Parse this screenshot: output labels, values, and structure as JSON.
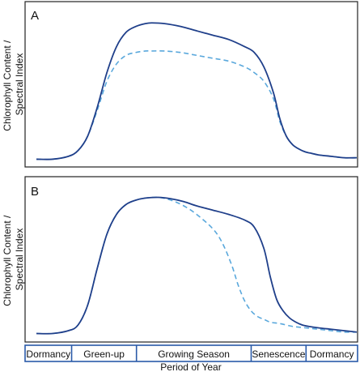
{
  "chart_data": [
    {
      "type": "line",
      "panel_label": "A",
      "ylabel": "Chlorophyll Content / Spectral Index",
      "xlim": [
        0,
        100
      ],
      "ylim": [
        0,
        100
      ],
      "grid": false,
      "series": [
        {
          "style": "solid",
          "color": "#1f3f8a",
          "x": [
            0,
            5,
            10,
            13,
            16,
            19,
            22,
            25,
            28,
            31,
            34,
            36,
            40,
            45,
            50,
            55,
            60,
            65,
            68,
            71,
            74,
            76,
            78,
            80,
            82,
            84,
            86,
            88,
            92,
            96,
            100
          ],
          "y": [
            2,
            2,
            4,
            8,
            18,
            38,
            62,
            80,
            90,
            94,
            96,
            96.5,
            96,
            94,
            91,
            88,
            85,
            80,
            76,
            66,
            48,
            30,
            18,
            12,
            9,
            7,
            6,
            5,
            4,
            3,
            3
          ]
        },
        {
          "style": "dashed",
          "color": "#5aa8dc",
          "x": [
            0,
            5,
            10,
            13,
            16,
            19,
            22,
            25,
            28,
            31,
            34,
            36,
            40,
            45,
            50,
            55,
            60,
            65,
            68,
            71,
            74,
            76,
            78,
            80,
            82,
            84,
            86,
            88,
            92,
            96,
            100
          ],
          "y": [
            2,
            2,
            4,
            8,
            18,
            36,
            56,
            68,
            74,
            76,
            77,
            77,
            77,
            76,
            74,
            72,
            70,
            66,
            62,
            56,
            44,
            28,
            18,
            12,
            9,
            7,
            6,
            5,
            4,
            3,
            3
          ]
        }
      ]
    },
    {
      "type": "line",
      "panel_label": "B",
      "ylabel": "Chlorophyll Content / Spectral Index",
      "xlim": [
        0,
        100
      ],
      "ylim": [
        0,
        100
      ],
      "grid": false,
      "series": [
        {
          "style": "solid",
          "color": "#1f3f8a",
          "x": [
            0,
            5,
            10,
            13,
            16,
            19,
            22,
            25,
            28,
            31,
            34,
            38,
            42,
            46,
            50,
            55,
            60,
            65,
            68,
            71,
            73,
            75,
            77,
            79,
            81,
            83,
            85,
            88,
            92,
            96,
            100
          ],
          "y": [
            2,
            2,
            4,
            8,
            22,
            48,
            72,
            86,
            93,
            96,
            97.5,
            98,
            97,
            95,
            92,
            89,
            86,
            82,
            77,
            62,
            42,
            26,
            18,
            13,
            10,
            8,
            7,
            6,
            5,
            4,
            3
          ]
        },
        {
          "style": "dashed",
          "color": "#5aa8dc",
          "x": [
            0,
            5,
            10,
            13,
            16,
            19,
            22,
            25,
            28,
            31,
            34,
            38,
            42,
            46,
            50,
            55,
            58,
            61,
            63,
            65,
            67,
            69,
            71,
            73,
            76,
            80,
            84,
            88,
            92,
            96,
            100
          ],
          "y": [
            2,
            2,
            4,
            8,
            22,
            48,
            72,
            86,
            93,
            96,
            97.5,
            98,
            96,
            92,
            86,
            76,
            66,
            50,
            36,
            25,
            18,
            14,
            12,
            10,
            9,
            7,
            6,
            5,
            4,
            3,
            3
          ]
        }
      ]
    }
  ],
  "periods": {
    "xlabel": "Period of Year",
    "items": [
      {
        "label": "Dormancy",
        "start": 0,
        "end": 14
      },
      {
        "label": "Green-up",
        "start": 14,
        "end": 33.5
      },
      {
        "label": "Growing Season",
        "start": 33.5,
        "end": 68
      },
      {
        "label": "Senescence",
        "start": 68,
        "end": 84.5
      },
      {
        "label": "Dormancy",
        "start": 84.5,
        "end": 100
      }
    ]
  }
}
